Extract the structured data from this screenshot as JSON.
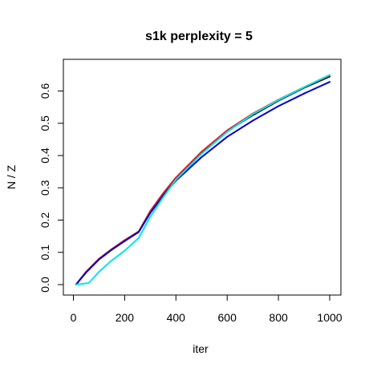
{
  "chart_data": {
    "type": "line",
    "title": "s1k perplexity = 5",
    "xlabel": "iter",
    "ylabel": "N / Z",
    "xlim": [
      0,
      1000
    ],
    "ylim": [
      0,
      0.65
    ],
    "x_ticks": [
      0,
      200,
      400,
      600,
      800,
      1000
    ],
    "x_tick_labels": [
      "0",
      "200",
      "400",
      "600",
      "800",
      "1000"
    ],
    "y_ticks": [
      0.0,
      0.1,
      0.2,
      0.3,
      0.4,
      0.5,
      0.6
    ],
    "y_tick_labels": [
      "0.0",
      "0.1",
      "0.2",
      "0.3",
      "0.4",
      "0.5",
      "0.6"
    ],
    "grid": false,
    "legend": "none",
    "series": [
      {
        "color": "#000000",
        "x": [
          10,
          50,
          100,
          150,
          200,
          255,
          300,
          350,
          400,
          500,
          600,
          700,
          800,
          900,
          1000
        ],
        "y": [
          0.0,
          0.04,
          0.08,
          0.11,
          0.135,
          0.165,
          0.225,
          0.28,
          0.33,
          0.41,
          0.475,
          0.525,
          0.57,
          0.61,
          0.645
        ]
      },
      {
        "color": "#e02020",
        "x": [
          10,
          50,
          100,
          150,
          200,
          255,
          300,
          350,
          400,
          500,
          600,
          700,
          800,
          900,
          1000
        ],
        "y": [
          0.0,
          0.04,
          0.08,
          0.11,
          0.138,
          0.165,
          0.228,
          0.283,
          0.332,
          0.412,
          0.478,
          0.53,
          0.573,
          0.612,
          0.648
        ]
      },
      {
        "color": "#0000cc",
        "x": [
          10,
          50,
          100,
          150,
          200,
          255,
          300,
          350,
          400,
          500,
          600,
          700,
          800,
          900,
          1000
        ],
        "y": [
          0.0,
          0.038,
          0.078,
          0.108,
          0.135,
          0.163,
          0.222,
          0.275,
          0.322,
          0.395,
          0.458,
          0.508,
          0.553,
          0.592,
          0.628
        ]
      },
      {
        "color": "#00e5ee",
        "x": [
          10,
          60,
          100,
          150,
          200,
          255,
          300,
          350,
          400,
          500,
          600,
          700,
          800,
          900,
          1000
        ],
        "y": [
          0.0,
          0.005,
          0.04,
          0.075,
          0.105,
          0.145,
          0.21,
          0.27,
          0.325,
          0.405,
          0.473,
          0.528,
          0.572,
          0.612,
          0.65
        ]
      }
    ]
  }
}
